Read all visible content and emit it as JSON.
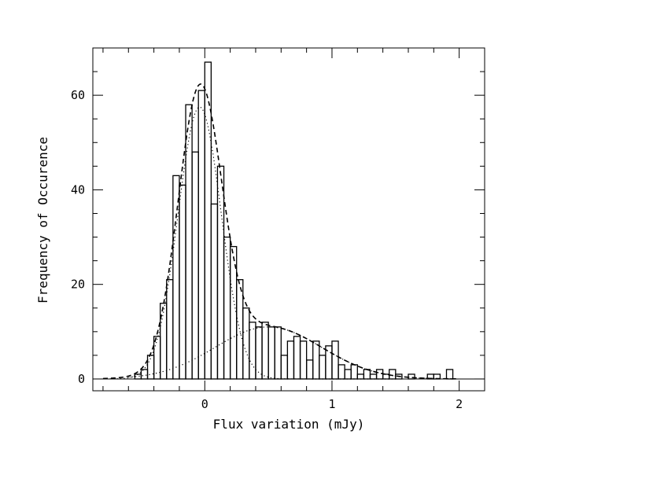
{
  "chart_data": {
    "type": "histogram",
    "xlabel": "Flux variation (mJy)",
    "ylabel": "Frequency of Occurence",
    "xlim": [
      -0.88,
      2.2
    ],
    "ylim": [
      -2.5,
      70
    ],
    "x_ticks": [
      0,
      1,
      2
    ],
    "y_ticks": [
      0,
      20,
      40,
      60
    ],
    "grid": false,
    "histogram": {
      "bin_width": 0.05,
      "bin_starts": [
        -0.8,
        -0.75,
        -0.7,
        -0.65,
        -0.6,
        -0.55,
        -0.5,
        -0.45,
        -0.4,
        -0.35,
        -0.3,
        -0.25,
        -0.2,
        -0.15,
        -0.1,
        -0.05,
        0.0,
        0.05,
        0.1,
        0.15,
        0.2,
        0.25,
        0.3,
        0.35,
        0.4,
        0.45,
        0.5,
        0.55,
        0.6,
        0.65,
        0.7,
        0.75,
        0.8,
        0.85,
        0.9,
        0.95,
        1.0,
        1.05,
        1.1,
        1.15,
        1.2,
        1.25,
        1.3,
        1.35,
        1.4,
        1.45,
        1.5,
        1.55,
        1.6,
        1.65,
        1.7,
        1.75,
        1.8,
        1.85,
        1.9,
        1.95
      ],
      "counts": [
        0,
        0,
        0,
        0,
        0,
        1,
        2,
        5,
        9,
        16,
        21,
        43,
        41,
        58,
        48,
        61,
        67,
        37,
        45,
        30,
        28,
        21,
        15,
        12,
        11,
        12,
        11,
        11,
        5,
        8,
        9,
        8,
        4,
        8,
        5,
        7,
        8,
        3,
        2,
        3,
        1,
        2,
        1,
        2,
        1,
        2,
        1,
        0,
        1,
        0,
        0,
        1,
        1,
        0,
        2,
        0
      ]
    },
    "model": {
      "components": [
        {
          "amplitude": 57.5,
          "mean": -0.04,
          "sigma": 0.17
        },
        {
          "amplitude": 11.0,
          "mean": 0.5,
          "sigma": 0.42
        }
      ],
      "line_styles": {
        "components": "dotted",
        "total": "dashed"
      }
    }
  }
}
